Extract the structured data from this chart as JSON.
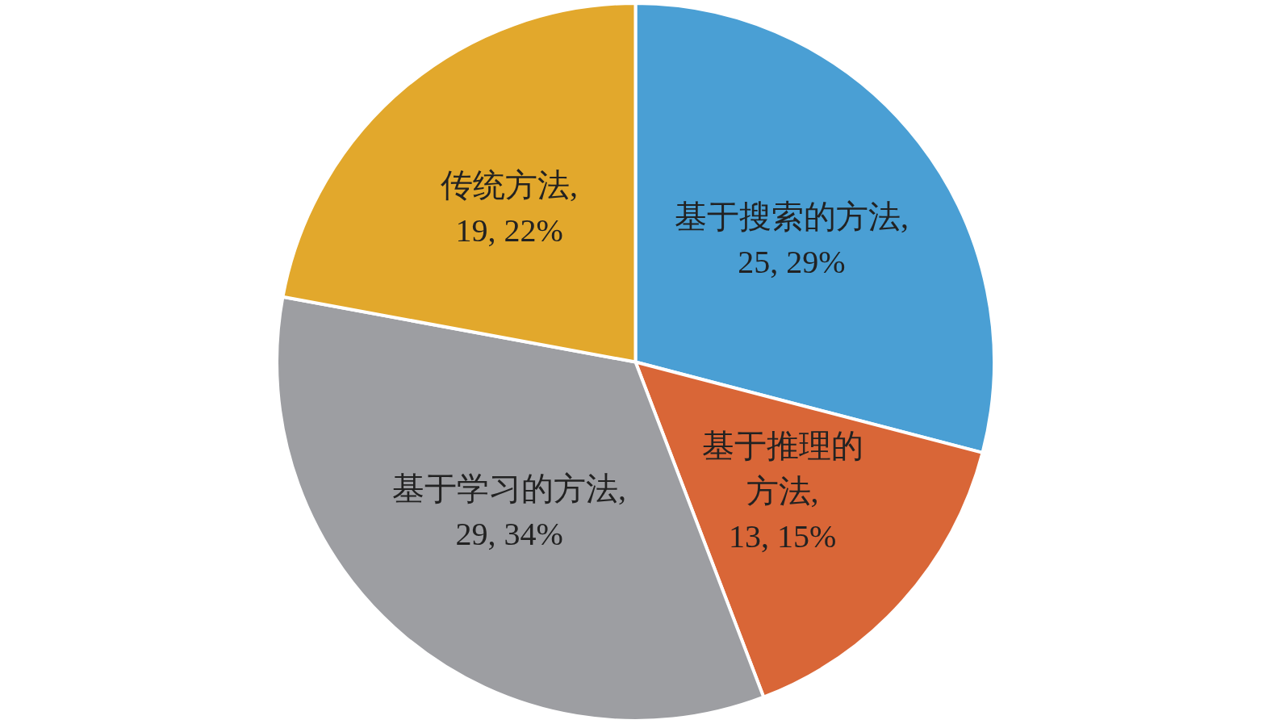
{
  "chart_data": {
    "type": "pie",
    "categories": [
      "基于搜索的方法",
      "基于推理的方法",
      "基于学习的方法",
      "传统方法"
    ],
    "values": [
      25,
      13,
      29,
      19
    ],
    "value_labels": [
      ", 25, 29%",
      ", 13, 15%",
      ", 29, 34%",
      ", 19, 22%"
    ],
    "colors": [
      "#4a9fd4",
      "#d96637",
      "#9d9ea2",
      "#e2a82c"
    ],
    "legend": false
  }
}
